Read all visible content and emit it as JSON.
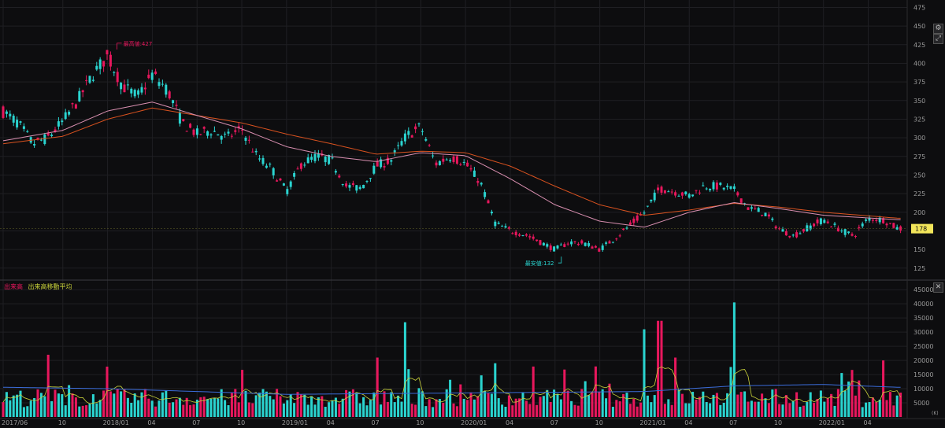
{
  "colors": {
    "background": "#0d0d0f",
    "grid": "#1f1f23",
    "axis_text": "#9a9a9a",
    "up": "#e8175d",
    "down": "#2ad4d0",
    "ma_long": "#d9521f",
    "ma_short": "#d98fb0",
    "volume_ma_short": "#c9d23a",
    "volume_ma_long": "#3b6cd9",
    "price_tag_bg": "#f2e55a",
    "max_label": "#e8175d",
    "min_label": "#2ad4d0"
  },
  "controls": {
    "price_icons": [
      "gear-icon",
      "expand-icon"
    ],
    "volume_icons": [
      "close-icon"
    ]
  },
  "legend": {
    "volume": "出来高",
    "volume_ma": "出来高移動平均"
  },
  "price_axis": {
    "ticks": [
      "475",
      "450",
      "425",
      "400",
      "375",
      "350",
      "325",
      "300",
      "275",
      "250",
      "225",
      "200",
      "175",
      "150",
      "125"
    ],
    "current_value": "178"
  },
  "volume_axis": {
    "ticks": [
      "45000",
      "40000",
      "35000",
      "30000",
      "25000",
      "20000",
      "15000",
      "10000",
      "5000"
    ],
    "unit": "(K)"
  },
  "time_axis": {
    "labels": [
      "2017/06",
      "10",
      "2018/01",
      "04",
      "07",
      "10",
      "2019/01",
      "04",
      "07",
      "10",
      "2020/01",
      "04",
      "07",
      "10",
      "2021/01",
      "04",
      "07",
      "10",
      "2022/01",
      "04"
    ]
  },
  "annotations": {
    "max_label": "最高値:427",
    "min_label": "最安値:132"
  },
  "chart_data": {
    "type": "candlestick",
    "period": "weekly",
    "x_range": [
      "2017/06",
      "2022/06"
    ],
    "price_ylim": [
      110,
      485
    ],
    "volume_ylim": [
      0,
      47000
    ],
    "price_points": [
      [
        "2017/06",
        335
      ],
      [
        "2017/07",
        320
      ],
      [
        "2017/08",
        292
      ],
      [
        "2017/09",
        300
      ],
      [
        "2017/10",
        322
      ],
      [
        "2017/11",
        350
      ],
      [
        "2017/12",
        385
      ],
      [
        "2018/01",
        410
      ],
      [
        "2018/02",
        370
      ],
      [
        "2018/03",
        355
      ],
      [
        "2018/04",
        385
      ],
      [
        "2018/05",
        365
      ],
      [
        "2018/06",
        320
      ],
      [
        "2018/07",
        305
      ],
      [
        "2018/08",
        310
      ],
      [
        "2018/09",
        300
      ],
      [
        "2018/10",
        312
      ],
      [
        "2018/11",
        275
      ],
      [
        "2018/12",
        258
      ],
      [
        "2019/01",
        228
      ],
      [
        "2019/02",
        265
      ],
      [
        "2019/03",
        275
      ],
      [
        "2019/04",
        270
      ],
      [
        "2019/05",
        235
      ],
      [
        "2019/06",
        232
      ],
      [
        "2019/07",
        262
      ],
      [
        "2019/08",
        270
      ],
      [
        "2019/09",
        302
      ],
      [
        "2019/10",
        315
      ],
      [
        "2019/11",
        265
      ],
      [
        "2019/12",
        275
      ],
      [
        "2020/01",
        265
      ],
      [
        "2020/02",
        240
      ],
      [
        "2020/03",
        185
      ],
      [
        "2020/04",
        175
      ],
      [
        "2020/05",
        170
      ],
      [
        "2020/06",
        160
      ],
      [
        "2020/07",
        150
      ],
      [
        "2020/08",
        160
      ],
      [
        "2020/09",
        158
      ],
      [
        "2020/10",
        150
      ],
      [
        "2020/11",
        165
      ],
      [
        "2020/12",
        182
      ],
      [
        "2021/01",
        200
      ],
      [
        "2021/02",
        232
      ],
      [
        "2021/03",
        228
      ],
      [
        "2021/04",
        222
      ],
      [
        "2021/05",
        235
      ],
      [
        "2021/06",
        235
      ],
      [
        "2021/07",
        230
      ],
      [
        "2021/08",
        205
      ],
      [
        "2021/09",
        200
      ],
      [
        "2021/10",
        178
      ],
      [
        "2021/11",
        168
      ],
      [
        "2021/12",
        180
      ],
      [
        "2022/01",
        190
      ],
      [
        "2022/02",
        178
      ],
      [
        "2022/03",
        168
      ],
      [
        "2022/04",
        192
      ],
      [
        "2022/05",
        190
      ],
      [
        "2022/06",
        178
      ]
    ],
    "ma_short": [
      [
        "2017/06",
        296
      ],
      [
        "2017/10",
        310
      ],
      [
        "2018/01",
        336
      ],
      [
        "2018/04",
        348
      ],
      [
        "2018/07",
        330
      ],
      [
        "2018/10",
        312
      ],
      [
        "2019/01",
        288
      ],
      [
        "2019/04",
        275
      ],
      [
        "2019/07",
        268
      ],
      [
        "2019/10",
        280
      ],
      [
        "2020/01",
        276
      ],
      [
        "2020/04",
        245
      ],
      [
        "2020/07",
        210
      ],
      [
        "2020/10",
        188
      ],
      [
        "2021/01",
        180
      ],
      [
        "2021/04",
        200
      ],
      [
        "2021/07",
        213
      ],
      [
        "2021/10",
        205
      ],
      [
        "2022/01",
        196
      ],
      [
        "2022/06",
        190
      ]
    ],
    "ma_long": [
      [
        "2017/06",
        292
      ],
      [
        "2017/10",
        302
      ],
      [
        "2018/01",
        325
      ],
      [
        "2018/04",
        340
      ],
      [
        "2018/07",
        330
      ],
      [
        "2018/10",
        320
      ],
      [
        "2019/01",
        305
      ],
      [
        "2019/04",
        292
      ],
      [
        "2019/07",
        278
      ],
      [
        "2019/10",
        282
      ],
      [
        "2020/01",
        280
      ],
      [
        "2020/04",
        262
      ],
      [
        "2020/07",
        235
      ],
      [
        "2020/10",
        210
      ],
      [
        "2021/01",
        196
      ],
      [
        "2021/04",
        203
      ],
      [
        "2021/07",
        212
      ],
      [
        "2021/10",
        207
      ],
      [
        "2022/01",
        200
      ],
      [
        "2022/06",
        192
      ]
    ],
    "max": {
      "date": "2018/01",
      "value": 427
    },
    "min": {
      "date": "2020/07",
      "value": 132
    },
    "volume_peaks": [
      [
        "2017/09",
        22000
      ],
      [
        "2019/07",
        21000
      ],
      [
        "2019/09",
        33500
      ],
      [
        "2020/03",
        19000
      ],
      [
        "2021/01",
        31000
      ],
      [
        "2021/02",
        34000
      ],
      [
        "2021/03",
        21000
      ],
      [
        "2021/07",
        40500
      ],
      [
        "2022/05",
        20000
      ]
    ],
    "volume_ma_long": [
      [
        "2017/06",
        10500
      ],
      [
        "2018/01",
        10000
      ],
      [
        "2019/01",
        8000
      ],
      [
        "2020/01",
        8500
      ],
      [
        "2021/01",
        9000
      ],
      [
        "2021/07",
        11000
      ],
      [
        "2022/01",
        11500
      ],
      [
        "2022/06",
        10500
      ]
    ]
  }
}
